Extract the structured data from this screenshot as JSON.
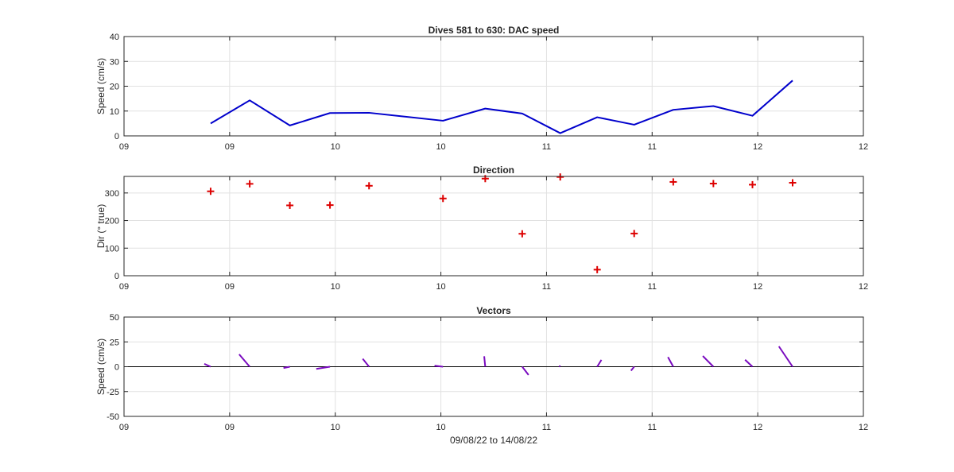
{
  "figure": {
    "xlabel": "09/08/22 to 14/08/22"
  },
  "x_ticks": [
    "09",
    "09",
    "10",
    "10",
    "11",
    "11",
    "12",
    "12"
  ],
  "chart_data": [
    {
      "type": "line",
      "title": "Dives 581 to 630: DAC speed",
      "xlabel": "",
      "ylabel": "Speed (cm/s)",
      "ylim": [
        0,
        40
      ],
      "y_ticks": [
        "0",
        "10",
        "20",
        "30",
        "40"
      ],
      "grid": true,
      "color": "#0000cc",
      "x": [
        0.82,
        1.19,
        1.57,
        1.95,
        2.32,
        3.02,
        3.42,
        3.77,
        4.13,
        4.48,
        4.83,
        5.2,
        5.58,
        5.95,
        6.33
      ],
      "y": [
        5,
        14.3,
        4.2,
        9.2,
        9.3,
        6.1,
        11,
        9,
        1.1,
        7.5,
        4.5,
        10.5,
        12,
        8.1,
        22.3
      ]
    },
    {
      "type": "scatter",
      "title": "Direction",
      "xlabel": "",
      "ylabel": "Dir (° true)",
      "ylim": [
        0,
        360
      ],
      "y_ticks": [
        "0",
        "100",
        "200",
        "300"
      ],
      "grid": true,
      "marker": "+",
      "color": "#dd0000",
      "x": [
        0.82,
        1.19,
        1.57,
        1.95,
        2.32,
        3.02,
        3.42,
        3.77,
        4.13,
        4.48,
        4.83,
        5.2,
        5.58,
        5.95,
        6.33
      ],
      "y": [
        306,
        333,
        255,
        256,
        326,
        280,
        352,
        152,
        358,
        22,
        153,
        340,
        334,
        330,
        337
      ]
    },
    {
      "type": "line",
      "title": "Vectors",
      "xlabel": "09/08/22 to 14/08/22",
      "ylabel": "Speed (cm/s)",
      "ylim": [
        -50,
        50
      ],
      "y_ticks": [
        "-50",
        "-25",
        "0",
        "25",
        "50"
      ],
      "grid": true,
      "color": "#7a0bbf",
      "zero_line": true,
      "vectors": [
        {
          "x": 0.82,
          "dx": -0.06,
          "dy": 2.9
        },
        {
          "x": 1.19,
          "dx": -0.1,
          "dy": 12.5
        },
        {
          "x": 1.57,
          "dx": -0.06,
          "dy": -1.3
        },
        {
          "x": 1.95,
          "dx": -0.13,
          "dy": -2.2
        },
        {
          "x": 2.32,
          "dx": -0.06,
          "dy": 8
        },
        {
          "x": 3.02,
          "dx": -0.08,
          "dy": 1
        },
        {
          "x": 3.42,
          "dx": -0.01,
          "dy": 10.5
        },
        {
          "x": 3.77,
          "dx": 0.06,
          "dy": -8.3
        },
        {
          "x": 4.13,
          "dx": -0.01,
          "dy": 1
        },
        {
          "x": 4.48,
          "dx": 0.04,
          "dy": 6.9
        },
        {
          "x": 4.83,
          "dx": -0.03,
          "dy": -4
        },
        {
          "x": 5.2,
          "dx": -0.05,
          "dy": 9.7
        },
        {
          "x": 5.58,
          "dx": -0.1,
          "dy": 10.8
        },
        {
          "x": 5.95,
          "dx": -0.07,
          "dy": 7
        },
        {
          "x": 6.33,
          "dx": -0.13,
          "dy": 20.5
        }
      ]
    }
  ]
}
